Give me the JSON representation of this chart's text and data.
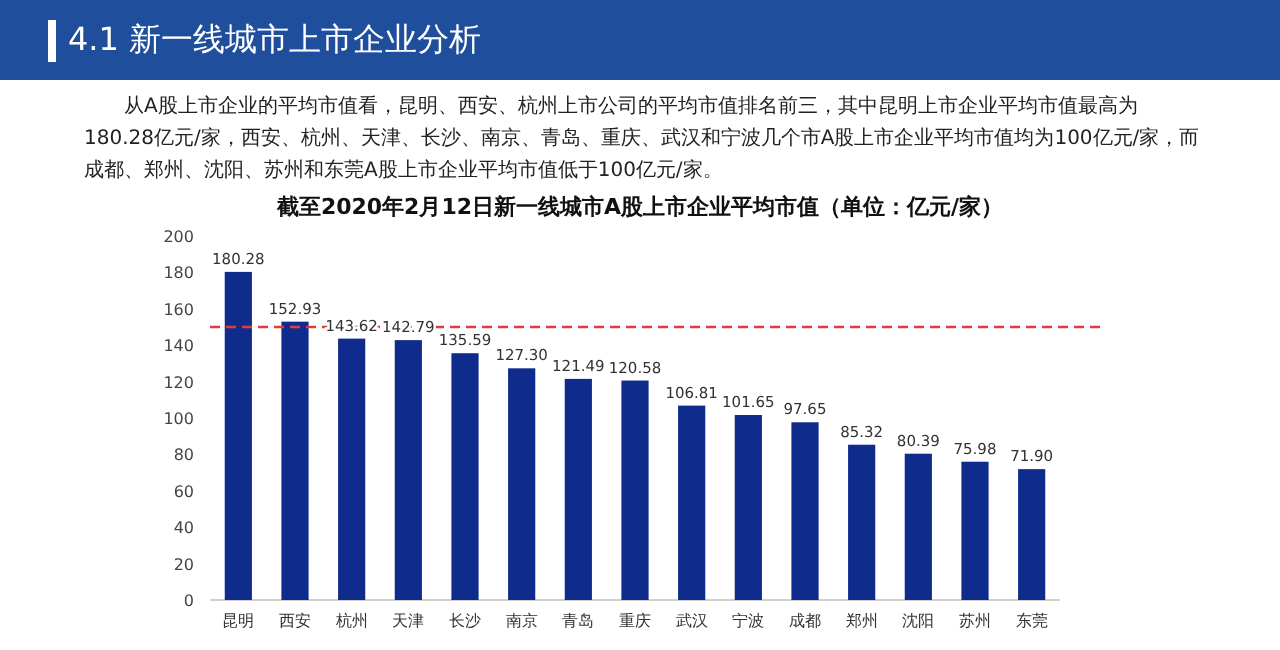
{
  "chart_data": {
    "type": "bar",
    "title": "4.1  新一线城市上市企业分析",
    "subtitle": "截至2020年2月12日新一线城市A股上市企业平均市值（单位：亿元/家）",
    "annotations": [
      "从A股上市企业的平均市值看，昆明、西安、杭州上市公司的平均市值排名前三，其中昆明上市企业平均市值最高为180.28亿元/家，西安、杭州、天津、长沙、南京、青岛、重庆、武汉和宁波几个市A股上市企业平均市值均为100亿元/家，而成都、郑州、沈阳、苏州和东莞A股上市企业平均市值低于100亿元/家。"
    ],
    "categories": [
      "昆明",
      "西安",
      "杭州",
      "天津",
      "长沙",
      "南京",
      "青岛",
      "重庆",
      "武汉",
      "宁波",
      "成都",
      "郑州",
      "沈阳",
      "苏州",
      "东莞"
    ],
    "values": [
      180.28,
      152.93,
      143.62,
      142.79,
      135.59,
      127.3,
      121.49,
      120.58,
      106.81,
      101.65,
      97.65,
      85.32,
      80.39,
      75.98,
      71.9
    ],
    "value_labels": [
      "180.28",
      "152.93",
      "143.62",
      "142.79",
      "135.59",
      "127.30",
      "121.49",
      "120.58",
      "106.81",
      "101.65",
      "97.65",
      "85.32",
      "80.39",
      "75.98",
      "71.90"
    ],
    "color": "#0f2c8c",
    "ylim": [
      0,
      200
    ],
    "yticks": [
      0,
      20,
      40,
      60,
      80,
      100,
      120,
      140,
      160,
      180,
      200
    ],
    "ref_lines": [
      {
        "axis": "y",
        "value": 150,
        "color": "#e03c3c",
        "line_style": "dashed"
      }
    ]
  }
}
